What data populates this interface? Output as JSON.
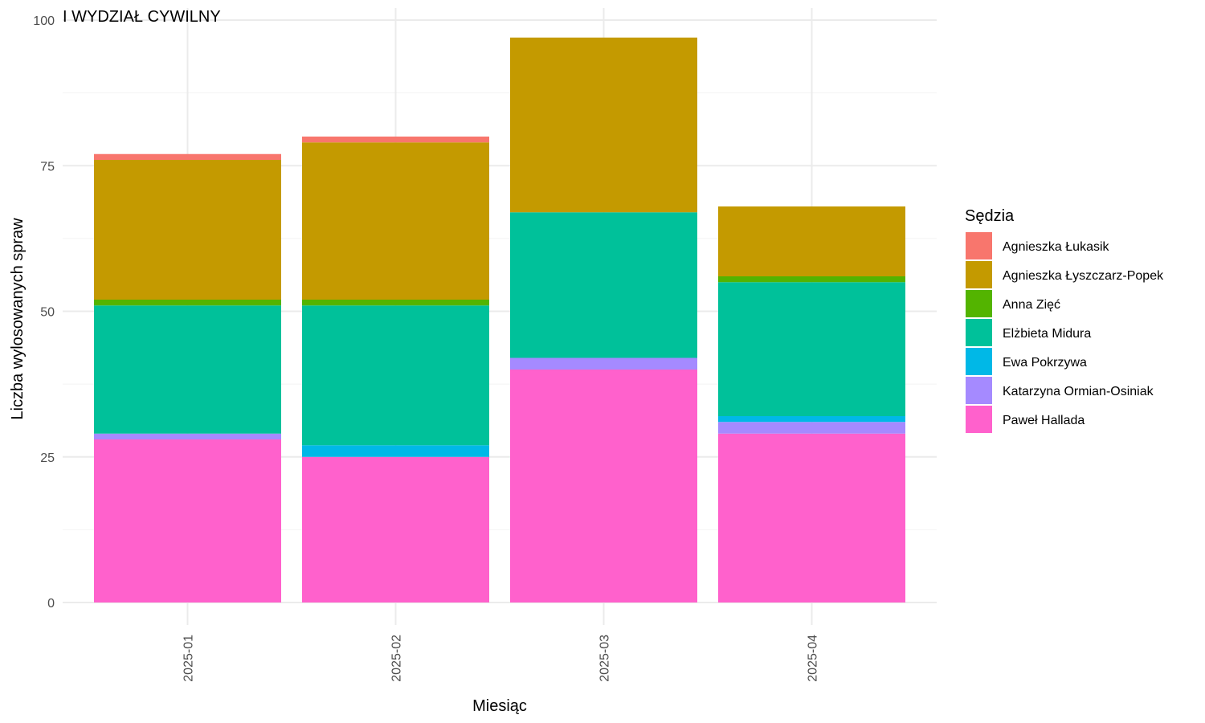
{
  "chart_data": {
    "type": "bar",
    "stacked": true,
    "title": "I WYDZIAŁ CYWILNY",
    "xlabel": "Miesiąc",
    "ylabel": "Liczba wylosowanych spraw",
    "ylim": [
      0,
      100
    ],
    "yticks": [
      0,
      25,
      50,
      75,
      100
    ],
    "grid": true,
    "legend": {
      "title": "Sędzia",
      "placement": "right"
    },
    "categories": [
      "2025-01",
      "2025-02",
      "2025-03",
      "2025-04"
    ],
    "series": [
      {
        "name": "Paweł Hallada",
        "color": "#FF61CC",
        "values": [
          28,
          25,
          40,
          29
        ]
      },
      {
        "name": "Katarzyna Ormian-Osiniak",
        "color": "#A58AFF",
        "values": [
          1,
          0,
          2,
          2
        ]
      },
      {
        "name": "Ewa Pokrzywa",
        "color": "#00B8E7",
        "values": [
          0,
          2,
          0,
          1
        ]
      },
      {
        "name": "Elżbieta Midura",
        "color": "#00C19A",
        "values": [
          22,
          24,
          25,
          23
        ]
      },
      {
        "name": "Anna Zięć",
        "color": "#53B400",
        "values": [
          1,
          1,
          0,
          1
        ]
      },
      {
        "name": "Agnieszka Łyszczarz-Popek",
        "color": "#C49A00",
        "values": [
          24,
          27,
          30,
          12
        ]
      },
      {
        "name": "Agnieszka Łukasik",
        "color": "#F8766D",
        "values": [
          1,
          1,
          0,
          0
        ]
      }
    ],
    "legend_order": [
      "Agnieszka Łukasik",
      "Agnieszka Łyszczarz-Popek",
      "Anna Zięć",
      "Elżbieta Midura",
      "Ewa Pokrzywa",
      "Katarzyna Ormian-Osiniak",
      "Paweł Hallada"
    ]
  }
}
